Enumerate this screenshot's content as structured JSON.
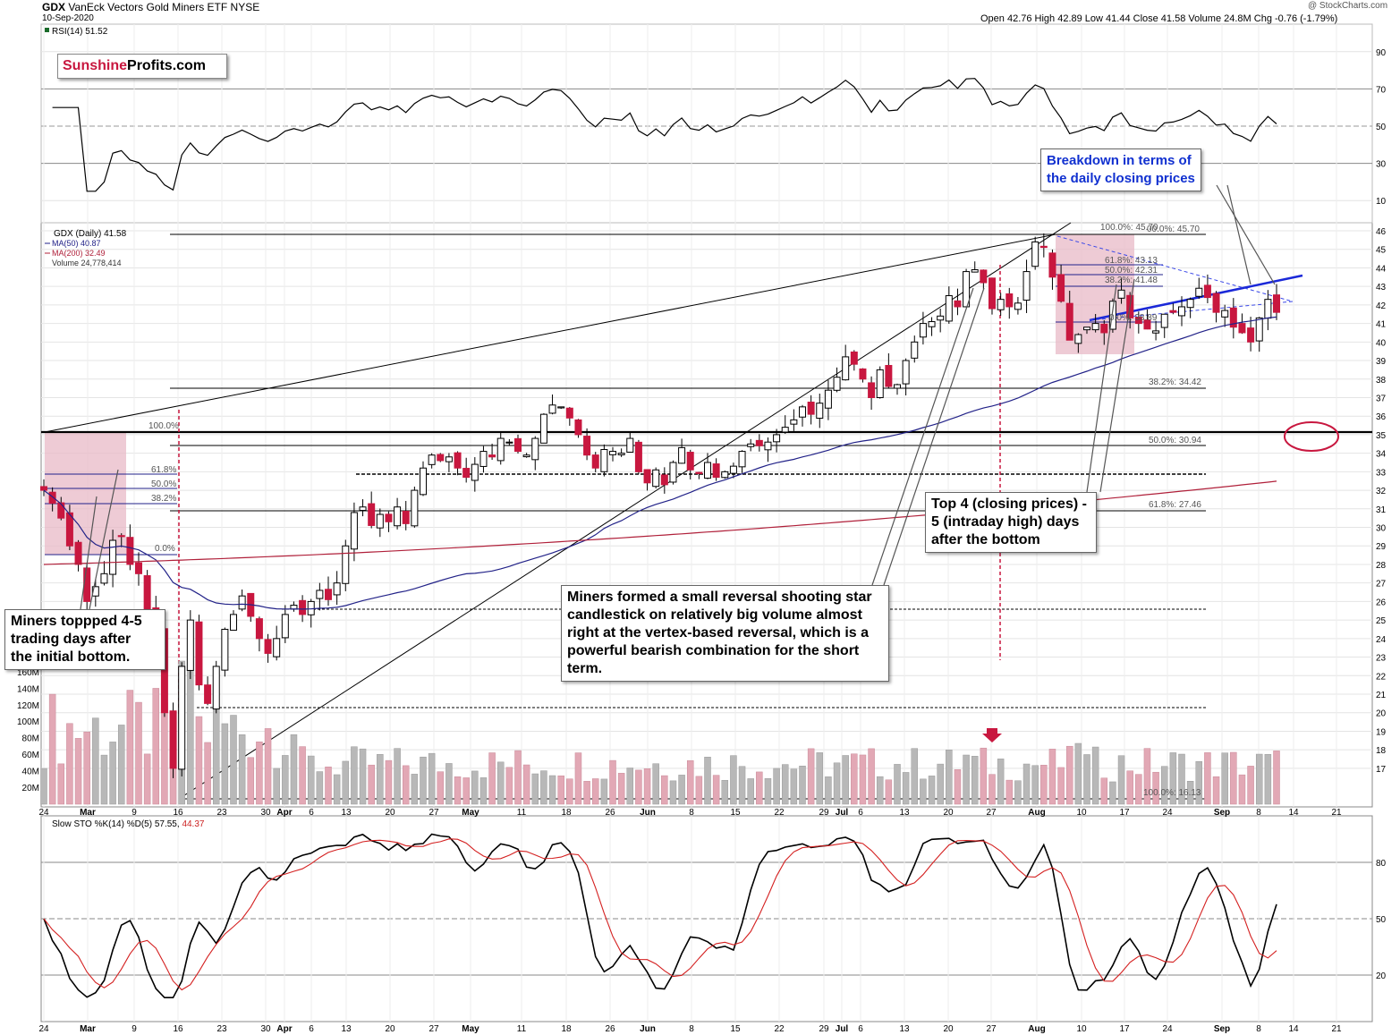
{
  "header": {
    "symbol": "GDX",
    "name": "VanEck Vectors Gold Miners ETF",
    "exchange": "NYSE",
    "date": "10-Sep-2020",
    "watermark": "@ StockCharts.com",
    "ohlc": "Open 42.76  High 42.89  Low 41.44  Close 41.58  Volume 24.8M  Chg -0.76 (-1.79%)"
  },
  "logo": {
    "part1": "Sunshine",
    "part2": "Profits.com"
  },
  "rsi": {
    "legend": "RSI(14) 51.52",
    "ticks": [
      "90",
      "70",
      "50",
      "30",
      "10"
    ]
  },
  "price_legend": {
    "gdx": "GDX (Daily) 41.58",
    "ma50": "MA(50) 40.87",
    "ma200": "MA(200) 32.49",
    "volume": "Volume 24,778,414"
  },
  "sto": {
    "legend_a": "Slow STO %K(14) %D(5) 57.55,",
    "legend_b": "44.37",
    "ticks": [
      "80",
      "50",
      "20"
    ]
  },
  "annotations": {
    "breakdown": "Breakdown in terms of\nthe daily closing prices",
    "top4": "Top 4 (closing prices) -\n5 (intraday high) days\nafter the bottom",
    "miners_formed": "Miners formed a small reversal shooting star\ncandlestick on relatively big volume almost\nright at the vertex-based reversal, which is a\npowerful bearish combination for the short\nterm.",
    "miners_topped": "Miners toppped 4-5\ntrading days after\nthe initial bottom."
  },
  "fib_labels": {
    "f100_left": "100.0%",
    "f618_left": "61.8%",
    "f50_left": "50.0%",
    "f382_left": "38.2%",
    "f0_left": "0.0%",
    "f100_top": "100.0%: 45.70",
    "f100_top_b": "00.0%: 45.70",
    "f618_top": "61.8%: 43.13",
    "f50_top": "50.0%: 42.31",
    "f382_top": "38.2%: 41.48",
    "f0_top": "0.0%: 38.89",
    "f382_mid": "38.2%: 34.42",
    "f50_mid": "50.0%: 30.94",
    "f618_mid": "61.8%: 27.46",
    "f100_bot": "100.0%: 16.13"
  },
  "chart_data": {
    "type": "candlestick",
    "title": "GDX VanEck Vectors Gold Miners ETF NYSE",
    "price_axis": [
      46,
      45,
      44,
      43,
      42,
      41,
      40,
      39,
      38,
      37,
      36,
      35,
      34,
      33,
      32,
      31,
      30,
      29,
      28,
      27,
      26,
      25,
      24,
      23,
      22,
      21,
      20,
      19,
      18,
      17
    ],
    "volume_axis": [
      "160M",
      "140M",
      "120M",
      "100M",
      "80M",
      "60M",
      "40M",
      "20M"
    ],
    "x_labels": [
      "24",
      "Mar",
      "9",
      "16",
      "23",
      "30",
      "Apr",
      "6",
      "13",
      "20",
      "27",
      "May",
      "11",
      "18",
      "26",
      "Jun",
      "8",
      "15",
      "22",
      "29",
      "Jul",
      "6",
      "13",
      "20",
      "27",
      "Aug",
      "10",
      "17",
      "24",
      "Sep",
      "8",
      "14",
      "21"
    ],
    "closes": [
      32.0,
      31.3,
      30.5,
      29.0,
      28.0,
      26.0,
      26.8,
      27.5,
      29.3,
      29.5,
      28.0,
      27.5,
      25.5,
      24.5,
      20.0,
      17.0,
      22.5,
      25.0,
      21.5,
      20.5,
      22.5,
      24.5,
      25.3,
      26.3,
      25.2,
      24.0,
      23.2,
      24.0,
      25.3,
      25.8,
      25.3,
      26.0,
      26.6,
      26.1,
      27.0,
      29.0,
      30.8,
      31.1,
      30.1,
      30.7,
      30.3,
      31.1,
      30.2,
      32.0,
      33.2,
      33.9,
      33.6,
      33.8,
      33.2,
      32.7,
      33.4,
      34.1,
      33.8,
      34.8,
      34.6,
      34.1,
      33.9,
      34.8,
      36.1,
      36.6,
      36.5,
      35.9,
      35.0,
      33.9,
      33.2,
      34.2,
      34.1,
      34.0,
      34.8,
      33.0,
      32.4,
      33.1,
      32.3,
      33.5,
      34.3,
      33.1,
      32.9,
      33.5,
      32.7,
      33.0,
      33.3,
      34.1,
      34.5,
      34.4,
      34.6,
      35.0,
      35.4,
      35.8,
      36.5,
      36.1,
      36.7,
      37.4,
      38.1,
      39.2,
      38.8,
      38.0,
      37.0,
      38.5,
      37.6,
      37.7,
      39.0,
      40.0,
      41.0,
      41.1,
      41.4,
      42.5,
      41.9,
      43.8,
      43.9,
      43.2,
      41.8,
      42.3,
      41.9,
      42.1,
      43.8,
      45.4,
      45.1,
      43.5,
      42.2,
      40.1,
      40.4,
      40.8,
      41.0,
      40.5,
      42.2,
      42.8,
      41.3,
      41.0,
      40.7,
      40.6,
      41.5,
      41.6,
      41.9,
      42.3,
      42.9,
      42.4,
      41.6,
      41.7,
      40.8,
      40.5,
      40.0,
      41.3,
      42.3,
      41.6
    ],
    "ma50_end": 40.87,
    "ma200_end": 32.49,
    "rsi_end": 51.52,
    "sto_k_end": 57.55,
    "sto_d_end": 44.37
  }
}
